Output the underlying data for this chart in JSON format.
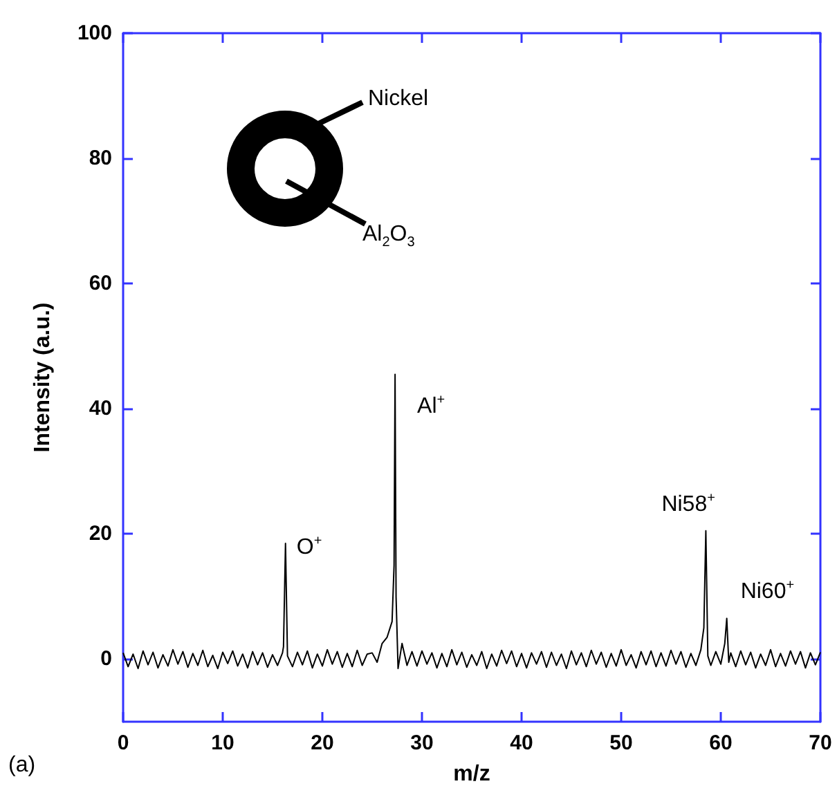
{
  "chart_data": {
    "type": "line",
    "xlabel": "m/z",
    "ylabel": "Intensity (a.u.)",
    "xlim": [
      0,
      70
    ],
    "ylim": [
      -10,
      100
    ],
    "xticks": [
      0,
      10,
      20,
      30,
      40,
      50,
      60,
      70
    ],
    "yticks": [
      0,
      20,
      40,
      60,
      80,
      100
    ],
    "grid": false,
    "marker": "none",
    "line_style": "solid",
    "series": [
      {
        "color": "#000000",
        "x": [
          0,
          0.5,
          1,
          1.5,
          2,
          2.5,
          3,
          3.5,
          4,
          4.5,
          5,
          5.5,
          6,
          6.5,
          7,
          7.5,
          8,
          8.5,
          9,
          9.5,
          10,
          10.5,
          11,
          11.5,
          12,
          12.5,
          13,
          13.5,
          14,
          14.5,
          15,
          15.5,
          16,
          16.1,
          16.3,
          16.5,
          17,
          17.5,
          18,
          18.5,
          19,
          19.5,
          20,
          20.5,
          21,
          21.5,
          22,
          22.5,
          23,
          23.5,
          24,
          24.5,
          25,
          25.5,
          26,
          26.5,
          27,
          27.2,
          27.3,
          27.4,
          27.6,
          28,
          28.5,
          29,
          29.5,
          30,
          30.5,
          31,
          31.5,
          32,
          32.5,
          33,
          33.5,
          34,
          34.5,
          35,
          35.5,
          36,
          36.5,
          37,
          37.5,
          38,
          38.5,
          39,
          39.5,
          40,
          40.5,
          41,
          41.5,
          42,
          42.5,
          43,
          43.5,
          44,
          44.5,
          45,
          45.5,
          46,
          46.5,
          47,
          47.5,
          48,
          48.5,
          49,
          49.5,
          50,
          50.5,
          51,
          51.5,
          52,
          52.5,
          53,
          53.5,
          54,
          54.5,
          55,
          55.5,
          56,
          56.5,
          57,
          57.5,
          58,
          58.3,
          58.5,
          58.7,
          59,
          59.5,
          60,
          60.4,
          60.6,
          60.8,
          61,
          61.5,
          62,
          62.5,
          63,
          63.5,
          64,
          64.5,
          65,
          65.5,
          66,
          66.5,
          67,
          67.5,
          68,
          68.5,
          69,
          69.5,
          70
        ],
        "values": [
          1,
          -1.2,
          0.8,
          -1.5,
          1.3,
          -0.9,
          1.1,
          -1.4,
          0.7,
          -1.1,
          1.5,
          -0.8,
          1.2,
          -1.3,
          0.9,
          -1,
          1.4,
          -1.2,
          0.6,
          -1.5,
          1.1,
          -0.7,
          1.3,
          -1.1,
          0.8,
          -1.4,
          1.2,
          -0.9,
          1,
          -1.3,
          0.7,
          -1,
          1,
          2,
          18.5,
          0.5,
          -1.2,
          1.1,
          -0.9,
          1.3,
          -1.4,
          0.8,
          -1.1,
          1.5,
          -0.8,
          1.2,
          -1.3,
          0.9,
          -1.2,
          1.4,
          -1,
          0.8,
          1,
          -0.5,
          2.5,
          3.5,
          6,
          15,
          45.5,
          10,
          -1.5,
          2.5,
          -1,
          1.2,
          -1.1,
          1.3,
          -0.8,
          1,
          -1.4,
          0.9,
          -1.2,
          1.5,
          -0.9,
          1.1,
          -1.3,
          0.7,
          -1,
          1.2,
          -1.5,
          0.8,
          -1.1,
          1.4,
          -0.7,
          1.3,
          -1.2,
          0.9,
          -1.4,
          1,
          -0.8,
          1.2,
          -1.3,
          1.1,
          -1,
          0.8,
          -1.5,
          1.3,
          -0.9,
          1,
          -1.2,
          1.4,
          -0.8,
          1.1,
          -1.3,
          0.9,
          -1.1,
          1.5,
          -1,
          0.7,
          -1.4,
          1.2,
          -0.9,
          1.3,
          -1.2,
          1,
          -1.1,
          1.4,
          -0.8,
          1.2,
          -1.3,
          0.9,
          -1,
          1.5,
          5,
          20.5,
          0.5,
          -1,
          1.2,
          -0.8,
          2.5,
          6.5,
          -0.5,
          1,
          -1.2,
          1.3,
          -0.9,
          1.1,
          -1.4,
          0.8,
          -1,
          1.5,
          -1.2,
          0.9,
          -1.1,
          1.3,
          -0.8,
          1.2,
          -1.4,
          1,
          -0.9,
          1.1
        ]
      }
    ],
    "annotations": [
      {
        "text": "O$^{+}$",
        "x": 16.3,
        "y": 18.5
      },
      {
        "text": "Al$^{+}$",
        "x": 27.3,
        "y": 45.5
      },
      {
        "text": "Ni58$^{+}$",
        "x": 58.5,
        "y": 20.5
      },
      {
        "text": "Ni60$^{+}$",
        "x": 60.6,
        "y": 6.5
      },
      "Nickel",
      "Al$_{2}$O$_{3}$",
      "(a)"
    ]
  }
}
